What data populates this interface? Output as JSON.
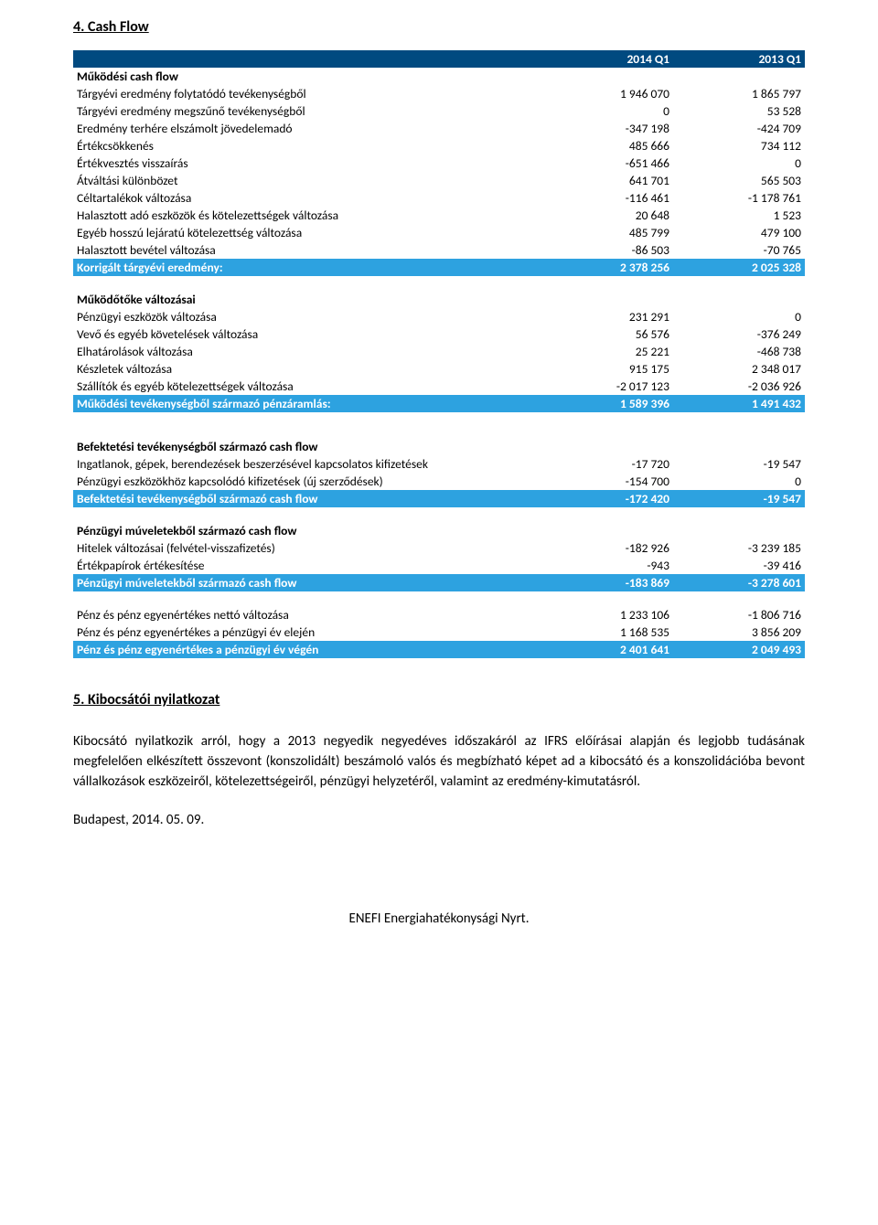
{
  "colors": {
    "header_bg": "#004a80",
    "header_text": "#ffffff",
    "highlight_bg": "#2da2e0",
    "highlight_text": "#ffffff",
    "body_text": "#000000",
    "background": "#ffffff"
  },
  "typography": {
    "font_family": "Calibri, Arial, sans-serif",
    "body_fontsize_pt": 11,
    "title_fontsize_pt": 12
  },
  "section4": {
    "title": "4. Cash Flow",
    "header": {
      "c1": "2014 Q1",
      "c2": "2013 Q1"
    },
    "block1_title": "Működési cash flow",
    "rows1": [
      {
        "label": "Tárgyévi eredmény folytatódó tevékenységből",
        "v1": "1 946 070",
        "v2": "1 865 797"
      },
      {
        "label": "Tárgyévi eredmény megszűnő tevékenységből",
        "v1": "0",
        "v2": "53 528"
      },
      {
        "label": "Eredmény terhére elszámolt jövedelemadó",
        "v1": "-347 198",
        "v2": "-424 709"
      },
      {
        "label": "Értékcsökkenés",
        "v1": "485 666",
        "v2": "734 112"
      },
      {
        "label": "Értékvesztés visszaírás",
        "v1": "-651 466",
        "v2": "0"
      },
      {
        "label": "Átváltási különbözet",
        "v1": "641 701",
        "v2": "565 503"
      },
      {
        "label": "Céltartalékok változása",
        "v1": "-116 461",
        "v2": "-1 178 761"
      },
      {
        "label": "Halasztott adó eszközök és kötelezettségek változása",
        "v1": "20 648",
        "v2": "1 523"
      },
      {
        "label": "Egyéb hosszú lejáratú kötelezettség változása",
        "v1": "485 799",
        "v2": "479 100"
      },
      {
        "label": "Halasztott bevétel változása",
        "v1": "-86 503",
        "v2": "-70 765"
      }
    ],
    "hl1": {
      "label": "Korrigált tárgyévi eredmény:",
      "v1": "2 378 256",
      "v2": "2 025 328"
    },
    "block2_title": "Működőtőke változásai",
    "rows2": [
      {
        "label": "Pénzügyi eszközök változása",
        "v1": "231 291",
        "v2": "0"
      },
      {
        "label": "Vevő és egyéb követelések változása",
        "v1": "56 576",
        "v2": "-376 249"
      },
      {
        "label": "Elhatárolások változása",
        "v1": "25 221",
        "v2": "-468 738"
      },
      {
        "label": "Készletek változása",
        "v1": "915 175",
        "v2": "2 348 017"
      },
      {
        "label": "Szállítók és egyéb kötelezettségek változása",
        "v1": "-2 017 123",
        "v2": "-2 036 926"
      }
    ],
    "hl2": {
      "label": "Működési tevékenységből származó pénzáramlás:",
      "v1": "1 589 396",
      "v2": "1 491 432"
    },
    "block3_title": "Befektetési tevékenységből származó cash flow",
    "rows3": [
      {
        "label": "Ingatlanok, gépek, berendezések beszerzésével kapcsolatos kifizetések",
        "v1": "-17 720",
        "v2": "-19 547"
      },
      {
        "label": "Pénzügyi eszközökhöz kapcsolódó kifizetések (új szerződések)",
        "v1": "-154 700",
        "v2": "0"
      }
    ],
    "hl3": {
      "label": "Befektetési tevékenységből származó cash flow",
      "v1": "-172 420",
      "v2": "-19 547"
    },
    "block4_title": "Pénzügyi múveletekből származó cash flow",
    "rows4": [
      {
        "label": "Hitelek változásai (felvétel-visszafizetés)",
        "v1": "-182 926",
        "v2": "-3 239 185"
      },
      {
        "label": "Értékpapírok értékesítése",
        "v1": "-943",
        "v2": "-39 416"
      }
    ],
    "hl4": {
      "label": "Pénzügyi múveletekből származó cash flow",
      "v1": "-183 869",
      "v2": "-3 278 601"
    },
    "rows5": [
      {
        "label": "Pénz és pénz egyenértékes nettó változása",
        "v1": "1 233 106",
        "v2": "-1 806 716"
      },
      {
        "label": "Pénz és pénz egyenértékes a pénzügyi év elején",
        "v1": "1 168 535",
        "v2": "3 856 209"
      }
    ],
    "hl5": {
      "label": "Pénz és pénz egyenértékes a pénzügyi év végén",
      "v1": "2 401 641",
      "v2": "2 049 493"
    }
  },
  "section5": {
    "title": "5. Kibocsátói nyilatkozat",
    "body": "Kibocsátó nyilatkozik arról, hogy a 2013 negyedik negyedéves időszakáról az IFRS előírásai alapján és legjobb tudásának megfelelően elkészített összevont (konszolidált) beszámoló valós és megbízható képet ad a kibocsátó és a konszolidációba bevont vállalkozások eszközeiről, kötelezettségeiről, pénzügyi helyzetéről, valamint az eredmény-kimutatásról.",
    "date": "Budapest, 2014. 05. 09."
  },
  "footer": "ENEFI Energiahatékonysági Nyrt."
}
